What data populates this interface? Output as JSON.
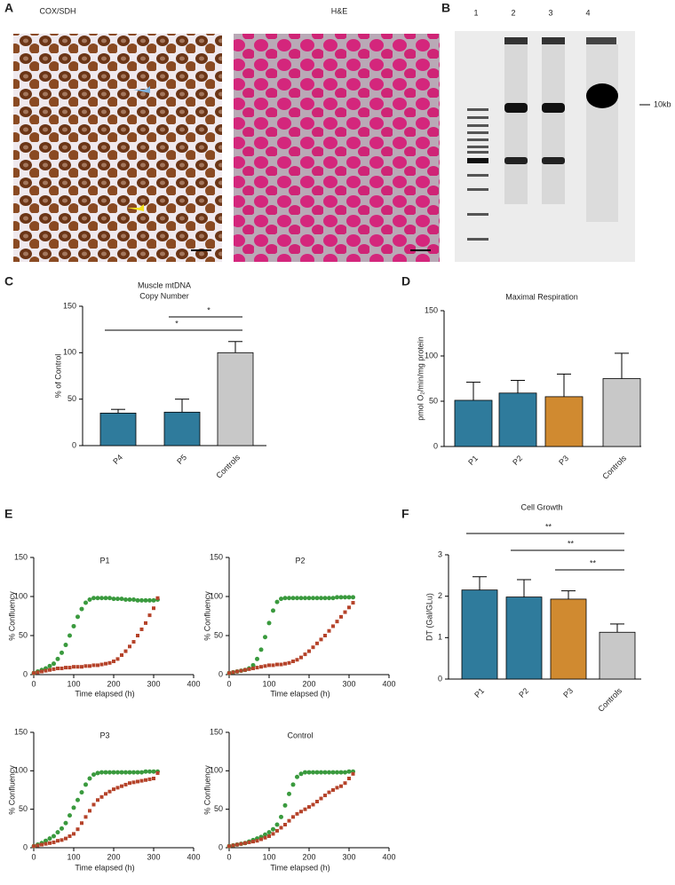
{
  "figure": {
    "panels": [
      "A",
      "B",
      "C",
      "D",
      "E",
      "F"
    ],
    "images": [
      "COX/SDH",
      "H&E"
    ],
    "gel": {
      "lanes": [
        "1",
        "2",
        "3",
        "4"
      ],
      "marker": "10kb"
    }
  },
  "chart_data": [
    {
      "type": "bar",
      "title": [
        "Muscle mtDNA",
        "Copy Number"
      ],
      "ylabel": "% of Control",
      "categories": [
        "P4",
        "P5",
        "Controls"
      ],
      "values": [
        35,
        36,
        100
      ],
      "errors": [
        4,
        14,
        12
      ],
      "colors": [
        "#2f7b9c",
        "#2f7b9c",
        "#c8c8c8"
      ],
      "ylim": [
        0,
        150
      ],
      "yticks": [
        0,
        50,
        100,
        150
      ],
      "significance": [
        {
          "label": "*",
          "span": [
            1,
            2
          ]
        },
        {
          "label": "*",
          "span": [
            0,
            2
          ]
        }
      ]
    },
    {
      "type": "bar",
      "title": [
        "Maximal Respiration"
      ],
      "ylabel": "pmol O₂/min/mg protein",
      "categories": [
        "P1",
        "P2",
        "P3",
        "Controls"
      ],
      "values": [
        51,
        59,
        55,
        75
      ],
      "errors": [
        20,
        14,
        25,
        28
      ],
      "colors": [
        "#2f7b9c",
        "#2f7b9c",
        "#d08a30",
        "#c8c8c8"
      ],
      "ylim": [
        0,
        150
      ],
      "yticks": [
        0,
        50,
        100,
        150
      ]
    },
    {
      "type": "scatter",
      "title": "P1",
      "xlabel": "Time elapsed (h)",
      "ylabel": "% Confluency",
      "x": [
        0,
        10,
        20,
        30,
        40,
        50,
        60,
        70,
        80,
        90,
        100,
        110,
        120,
        130,
        140,
        150,
        160,
        170,
        180,
        190,
        200,
        210,
        220,
        230,
        240,
        250,
        260,
        270,
        280,
        290,
        300,
        310
      ],
      "xlim": [
        0,
        400
      ],
      "xticks": [
        0,
        100,
        200,
        300,
        400
      ],
      "ylim": [
        0,
        150
      ],
      "yticks": [
        0,
        50,
        100,
        150
      ],
      "series": [
        {
          "color": "#3a9a3e",
          "marker": "circle",
          "values": [
            2,
            4,
            6,
            8,
            11,
            14,
            20,
            28,
            38,
            50,
            62,
            74,
            84,
            92,
            96,
            98,
            98,
            98,
            98,
            98,
            97,
            97,
            97,
            96,
            96,
            96,
            95,
            95,
            95,
            95,
            95,
            96
          ]
        },
        {
          "color": "#b5432a",
          "marker": "square",
          "values": [
            2,
            3,
            4,
            5,
            6,
            7,
            8,
            8,
            9,
            9,
            10,
            10,
            10,
            11,
            11,
            12,
            12,
            13,
            14,
            15,
            17,
            20,
            25,
            30,
            36,
            42,
            50,
            58,
            66,
            76,
            85,
            98
          ]
        }
      ]
    },
    {
      "type": "scatter",
      "title": "P2",
      "xlabel": "Time elapsed (h)",
      "ylabel": "% Confluency",
      "x": [
        0,
        10,
        20,
        30,
        40,
        50,
        60,
        70,
        80,
        90,
        100,
        110,
        120,
        130,
        140,
        150,
        160,
        170,
        180,
        190,
        200,
        210,
        220,
        230,
        240,
        250,
        260,
        270,
        280,
        290,
        300,
        310
      ],
      "xlim": [
        0,
        400
      ],
      "xticks": [
        0,
        100,
        200,
        300,
        400
      ],
      "ylim": [
        0,
        150
      ],
      "yticks": [
        0,
        50,
        100,
        150
      ],
      "series": [
        {
          "color": "#3a9a3e",
          "marker": "circle",
          "values": [
            2,
            3,
            4,
            5,
            6,
            8,
            12,
            20,
            32,
            48,
            66,
            82,
            93,
            97,
            98,
            98,
            98,
            98,
            98,
            98,
            98,
            98,
            98,
            98,
            98,
            98,
            98,
            99,
            99,
            99,
            99,
            99
          ]
        },
        {
          "color": "#b5432a",
          "marker": "square",
          "values": [
            2,
            3,
            4,
            5,
            6,
            7,
            8,
            9,
            10,
            11,
            12,
            12,
            13,
            13,
            14,
            15,
            17,
            19,
            22,
            26,
            30,
            35,
            40,
            45,
            50,
            56,
            62,
            68,
            74,
            80,
            86,
            92
          ]
        }
      ]
    },
    {
      "type": "scatter",
      "title": "P3",
      "xlabel": "Time elapsed (h)",
      "ylabel": "% Confluency",
      "x": [
        0,
        10,
        20,
        30,
        40,
        50,
        60,
        70,
        80,
        90,
        100,
        110,
        120,
        130,
        140,
        150,
        160,
        170,
        180,
        190,
        200,
        210,
        220,
        230,
        240,
        250,
        260,
        270,
        280,
        290,
        300,
        310
      ],
      "xlim": [
        0,
        400
      ],
      "xticks": [
        0,
        100,
        200,
        300,
        400
      ],
      "ylim": [
        0,
        150
      ],
      "yticks": [
        0,
        50,
        100,
        150
      ],
      "series": [
        {
          "color": "#3a9a3e",
          "marker": "circle",
          "values": [
            2,
            4,
            6,
            9,
            12,
            15,
            20,
            25,
            32,
            42,
            52,
            62,
            72,
            82,
            90,
            95,
            97,
            98,
            98,
            98,
            98,
            98,
            98,
            98,
            98,
            98,
            98,
            98,
            99,
            99,
            99,
            99
          ]
        },
        {
          "color": "#b5432a",
          "marker": "square",
          "values": [
            2,
            3,
            4,
            5,
            6,
            7,
            9,
            10,
            12,
            15,
            18,
            24,
            32,
            40,
            48,
            56,
            62,
            66,
            70,
            73,
            76,
            78,
            80,
            82,
            84,
            85,
            86,
            87,
            88,
            89,
            90,
            97
          ]
        }
      ]
    },
    {
      "type": "scatter",
      "title": "Control",
      "xlabel": "Time elapsed (h)",
      "ylabel": "% Confluency",
      "x": [
        0,
        10,
        20,
        30,
        40,
        50,
        60,
        70,
        80,
        90,
        100,
        110,
        120,
        130,
        140,
        150,
        160,
        170,
        180,
        190,
        200,
        210,
        220,
        230,
        240,
        250,
        260,
        270,
        280,
        290,
        300,
        310
      ],
      "xlim": [
        0,
        400
      ],
      "xticks": [
        0,
        100,
        200,
        300,
        400
      ],
      "ylim": [
        0,
        150
      ],
      "yticks": [
        0,
        50,
        100,
        150
      ],
      "series": [
        {
          "color": "#3a9a3e",
          "marker": "circle",
          "values": [
            2,
            3,
            4,
            5,
            6,
            8,
            10,
            12,
            14,
            17,
            20,
            24,
            30,
            40,
            55,
            70,
            82,
            92,
            96,
            98,
            98,
            98,
            98,
            98,
            98,
            98,
            98,
            98,
            98,
            98,
            99,
            99
          ]
        },
        {
          "color": "#b5432a",
          "marker": "square",
          "values": [
            2,
            3,
            4,
            5,
            6,
            7,
            8,
            9,
            11,
            13,
            15,
            18,
            22,
            26,
            30,
            35,
            40,
            44,
            47,
            50,
            53,
            56,
            60,
            64,
            68,
            72,
            75,
            78,
            80,
            84,
            90,
            96
          ]
        }
      ]
    },
    {
      "type": "bar",
      "title": [
        "Cell Growth"
      ],
      "ylabel": "DT (Gal/GLu)",
      "categories": [
        "P1",
        "P2",
        "P3",
        "Controls"
      ],
      "values": [
        2.15,
        1.98,
        1.93,
        1.13
      ],
      "errors": [
        0.32,
        0.42,
        0.2,
        0.2
      ],
      "colors": [
        "#2f7b9c",
        "#2f7b9c",
        "#d08a30",
        "#c8c8c8"
      ],
      "ylim": [
        0,
        3
      ],
      "yticks": [
        0,
        1,
        2,
        3
      ],
      "significance": [
        {
          "label": "**",
          "span": [
            0,
            3
          ]
        },
        {
          "label": "**",
          "span": [
            1,
            3
          ]
        },
        {
          "label": "**",
          "span": [
            2,
            3
          ]
        }
      ]
    }
  ]
}
